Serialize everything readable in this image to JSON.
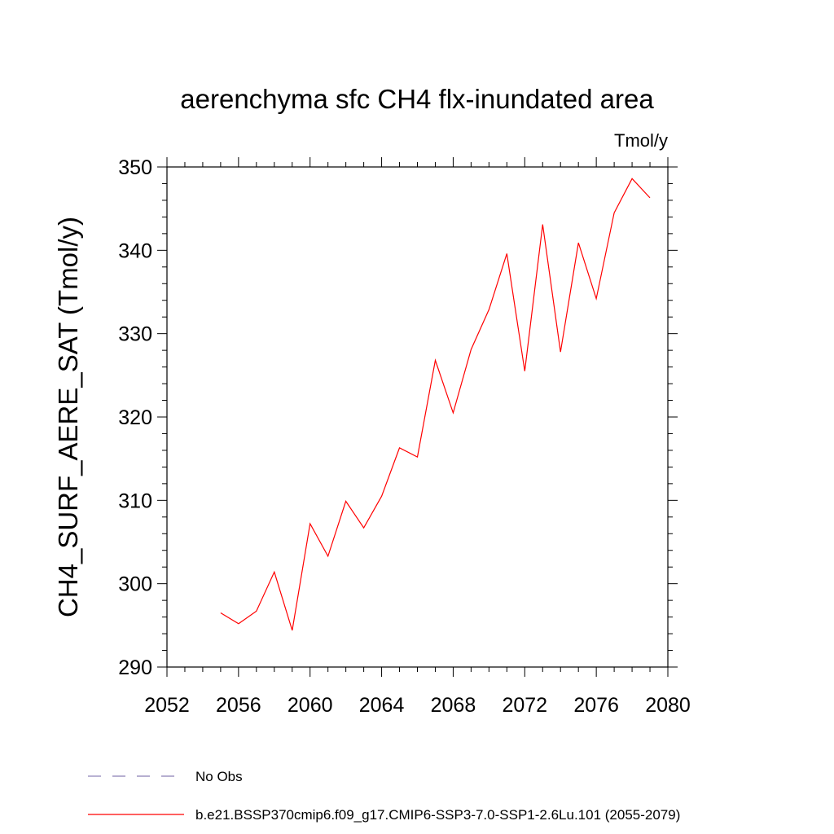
{
  "chart_data": {
    "type": "line",
    "title": "aerenchyma sfc CH4 flx-inundated area",
    "units": "Tmol/y",
    "ylabel": "CH4_SURF_AERE_SAT  (Tmol/y)",
    "xlabel": "",
    "xlim": [
      2052,
      2080
    ],
    "ylim": [
      290,
      350
    ],
    "xticks": [
      2052,
      2056,
      2060,
      2064,
      2068,
      2072,
      2076,
      2080
    ],
    "yticks": [
      290,
      300,
      310,
      320,
      330,
      340,
      350
    ],
    "series": [
      {
        "name": "b.e21.BSSP370cmip6.f09_g17.CMIP6-SSP3-7.0-SSP1-2.6Lu.101 (2055-2079)",
        "color": "#ff0000",
        "x": [
          2055,
          2056,
          2057,
          2058,
          2059,
          2060,
          2061,
          2062,
          2063,
          2064,
          2065,
          2066,
          2067,
          2068,
          2069,
          2070,
          2071,
          2072,
          2073,
          2074,
          2075,
          2076,
          2077,
          2078,
          2079
        ],
        "y": [
          296.5,
          295.2,
          296.7,
          301.4,
          294.4,
          307.2,
          303.3,
          309.9,
          306.7,
          310.5,
          316.3,
          315.2,
          326.8,
          320.5,
          328.1,
          332.9,
          339.6,
          325.5,
          343.1,
          327.8,
          340.9,
          334.2,
          344.5,
          348.6,
          346.3
        ]
      }
    ],
    "legend": [
      {
        "label": "No Obs",
        "style": "dashed",
        "color": "#8a7fb5"
      },
      {
        "label": "b.e21.BSSP370cmip6.f09_g17.CMIP6-SSP3-7.0-SSP1-2.6Lu.101 (2055-2079)",
        "style": "solid",
        "color": "#ff0000"
      }
    ],
    "legend_position": "bottom",
    "grid": false
  }
}
